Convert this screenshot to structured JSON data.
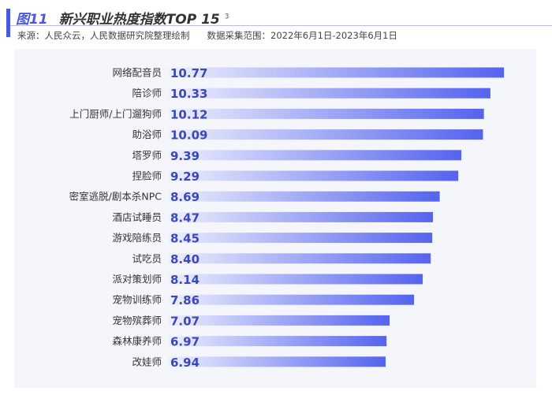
{
  "header": {
    "figure": "图11",
    "title": "新兴职业热度指数TOP 15",
    "footnote": "3",
    "source": "来源：人民众云，人民数据研究院整理绘制",
    "range": "数据采集范围：2022年6月1日-2023年6月1日"
  },
  "chart_data": {
    "type": "bar",
    "orientation": "horizontal",
    "categories": [
      "网络配音员",
      "陪诊师",
      "上门厨师/上门遛狗师",
      "助浴师",
      "塔罗师",
      "捏脸师",
      "密室逃脱/剧本杀NPC",
      "酒店试睡员",
      "游戏陪练员",
      "试吃员",
      "派对策划师",
      "宠物训练师",
      "宠物殡葬师",
      "森林康养师",
      "改娃师"
    ],
    "values": [
      10.77,
      10.33,
      10.12,
      10.09,
      9.39,
      9.29,
      8.69,
      8.47,
      8.45,
      8.4,
      8.14,
      7.86,
      7.07,
      6.97,
      6.94
    ],
    "labels": [
      "10.77",
      "10.33",
      "10.12",
      "10.09",
      "9.39",
      "9.29",
      "8.69",
      "8.47",
      "8.45",
      "8.40",
      "8.14",
      "7.86",
      "7.07",
      "6.97",
      "6.94"
    ],
    "colors": {
      "bar_start": "#eef0fc",
      "bar_end": "#5563ef",
      "value_text": "#3a48b8",
      "accent": "#4a57e8"
    },
    "grid": false,
    "legend": "none"
  }
}
